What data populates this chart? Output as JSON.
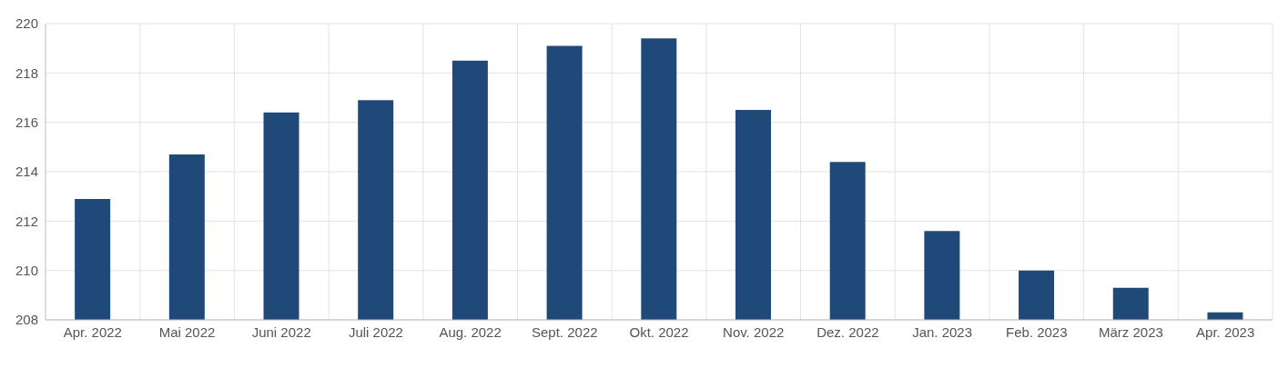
{
  "chart_data": {
    "type": "bar",
    "categories": [
      "Apr. 2022",
      "Mai 2022",
      "Juni 2022",
      "Juli 2022",
      "Aug. 2022",
      "Sept. 2022",
      "Okt. 2022",
      "Nov. 2022",
      "Dez. 2022",
      "Jan. 2023",
      "Feb. 2023",
      "März 2023",
      "Apr. 2023"
    ],
    "values": [
      212.9,
      214.7,
      216.4,
      216.9,
      218.5,
      219.1,
      219.4,
      216.5,
      214.4,
      211.6,
      210.0,
      209.3,
      208.3
    ],
    "color": "#1f4978",
    "ylim": [
      208,
      220
    ],
    "yticks": [
      208,
      210,
      212,
      214,
      216,
      218,
      220
    ],
    "grid": true
  }
}
